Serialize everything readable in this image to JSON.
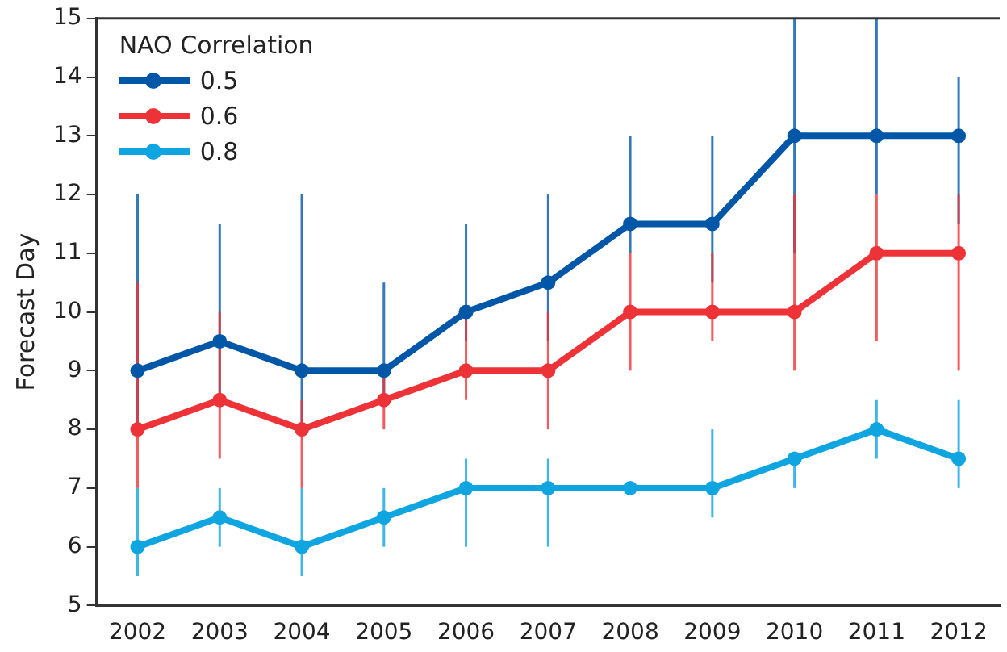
{
  "chart_data": {
    "type": "line",
    "ylabel": "Forecast Day",
    "legend_title": "NAO Correlation",
    "legend": "top left",
    "grid": false,
    "marker": "circle",
    "line_style": "solid",
    "categories": [
      "2002",
      "2003",
      "2004",
      "2005",
      "2006",
      "2007",
      "2008",
      "2009",
      "2010",
      "2011",
      "2012"
    ],
    "ylim": [
      5,
      15
    ],
    "yticks": [
      5,
      6,
      7,
      8,
      9,
      10,
      11,
      12,
      13,
      14,
      15
    ],
    "series": [
      {
        "name": "0.5",
        "color": "#0057a8",
        "values": [
          9,
          9.5,
          9,
          9,
          10,
          10.5,
          11.5,
          11.5,
          13,
          13,
          13
        ],
        "errors": [
          [
            8,
            12
          ],
          [
            8.5,
            11.5
          ],
          [
            8,
            12
          ],
          [
            8.5,
            10.5
          ],
          [
            9.5,
            11.5
          ],
          [
            9.5,
            12
          ],
          [
            11,
            13
          ],
          [
            10.5,
            13
          ],
          [
            11,
            15
          ],
          [
            12,
            15
          ],
          [
            11.5,
            14
          ]
        ]
      },
      {
        "name": "0.6",
        "color": "#ee3338",
        "values": [
          8,
          8.5,
          8,
          8.5,
          9,
          9,
          10,
          10,
          10,
          11,
          11
        ],
        "errors": [
          [
            7,
            10.5
          ],
          [
            7.5,
            10
          ],
          [
            7,
            8.5
          ],
          [
            8,
            9
          ],
          [
            8.5,
            10
          ],
          [
            8,
            10
          ],
          [
            9,
            11
          ],
          [
            9.5,
            11
          ],
          [
            9,
            12
          ],
          [
            9.5,
            12
          ],
          [
            9,
            12
          ]
        ]
      },
      {
        "name": "0.8",
        "color": "#0ea5e0",
        "values": [
          6,
          6.5,
          6,
          6.5,
          7,
          7,
          7,
          7,
          7.5,
          8,
          7.5
        ],
        "errors": [
          [
            5.5,
            7
          ],
          [
            6,
            7
          ],
          [
            5.5,
            7
          ],
          [
            6,
            7
          ],
          [
            6,
            7.5
          ],
          [
            6,
            7.5
          ],
          null,
          [
            6.5,
            8
          ],
          [
            7,
            7.5
          ],
          [
            7.5,
            8.5
          ],
          [
            7,
            8.5
          ]
        ]
      }
    ]
  }
}
